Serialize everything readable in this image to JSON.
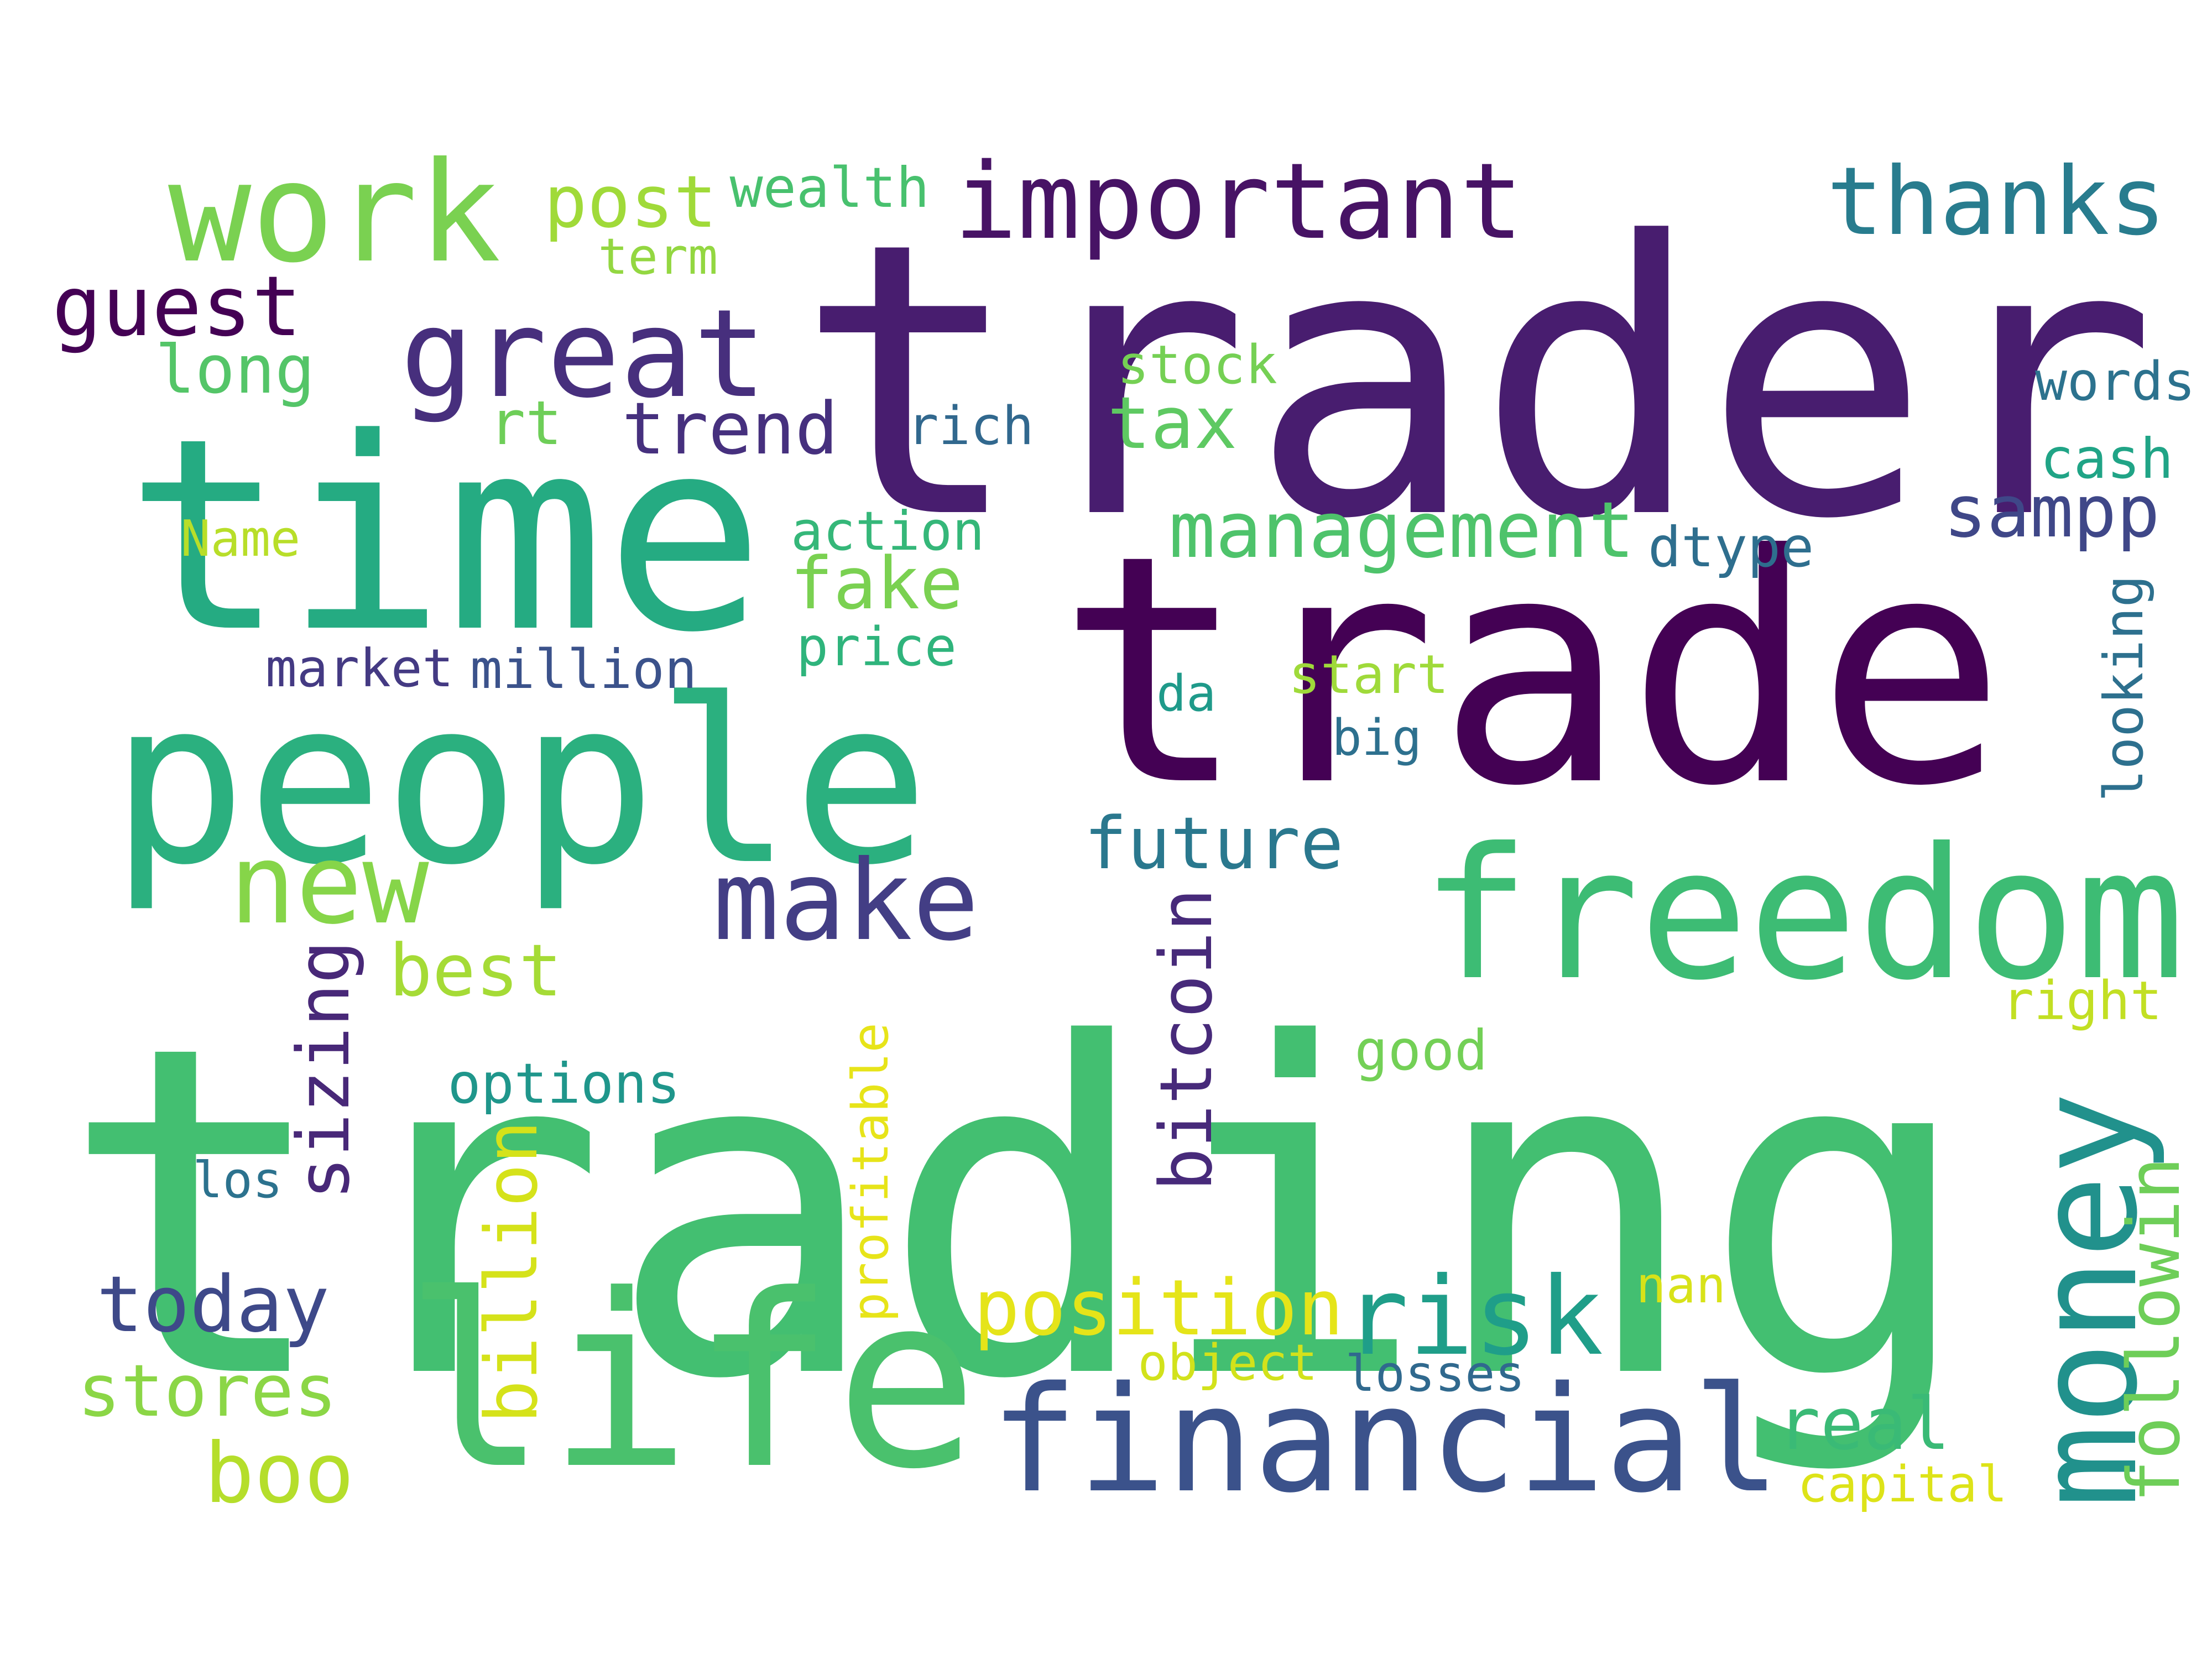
{
  "wordcloud": {
    "background": "#ffffff",
    "words": [
      {
        "text": "trading",
        "color": "#43bf71",
        "orientation": "horizontal"
      },
      {
        "text": "trader",
        "color": "#481d6f",
        "orientation": "horizontal"
      },
      {
        "text": "trade",
        "color": "#440154",
        "orientation": "horizontal"
      },
      {
        "text": "time",
        "color": "#25ab82",
        "orientation": "horizontal"
      },
      {
        "text": "people",
        "color": "#2bb07f",
        "orientation": "horizontal"
      },
      {
        "text": "freedom",
        "color": "#3dbc74",
        "orientation": "horizontal"
      },
      {
        "text": "life",
        "color": "#4ac16d",
        "orientation": "horizontal"
      },
      {
        "text": "financial",
        "color": "#3b528b",
        "orientation": "horizontal"
      },
      {
        "text": "work",
        "color": "#7ad151",
        "orientation": "horizontal"
      },
      {
        "text": "great",
        "color": "#472f7d",
        "orientation": "horizontal"
      },
      {
        "text": "important",
        "color": "#471365",
        "orientation": "horizontal"
      },
      {
        "text": "thanks",
        "color": "#287c8e",
        "orientation": "horizontal"
      },
      {
        "text": "make",
        "color": "#433e85",
        "orientation": "horizontal"
      },
      {
        "text": "new",
        "color": "#86d549",
        "orientation": "horizontal"
      },
      {
        "text": "money",
        "color": "#21918c",
        "orientation": "vertical"
      },
      {
        "text": "risk",
        "color": "#1f9e89",
        "orientation": "horizontal"
      },
      {
        "text": "management",
        "color": "#4ec36b",
        "orientation": "horizontal"
      },
      {
        "text": "position",
        "color": "#e5e419",
        "orientation": "horizontal"
      },
      {
        "text": "today",
        "color": "#3e4989",
        "orientation": "horizontal"
      },
      {
        "text": "stores",
        "color": "#8bd646",
        "orientation": "horizontal"
      },
      {
        "text": "boo",
        "color": "#b5de2b",
        "orientation": "horizontal"
      },
      {
        "text": "post",
        "color": "#a0da39",
        "orientation": "horizontal"
      },
      {
        "text": "guest",
        "color": "#440154",
        "orientation": "horizontal"
      },
      {
        "text": "long",
        "color": "#54c568",
        "orientation": "horizontal"
      },
      {
        "text": "trend",
        "color": "#46307e",
        "orientation": "horizontal"
      },
      {
        "text": "tax",
        "color": "#5ec962",
        "orientation": "horizontal"
      },
      {
        "text": "sampp",
        "color": "#3f4788",
        "orientation": "horizontal"
      },
      {
        "text": "fake",
        "color": "#7ad151",
        "orientation": "horizontal"
      },
      {
        "text": "future",
        "color": "#2a788e",
        "orientation": "horizontal"
      },
      {
        "text": "best",
        "color": "#a5db36",
        "orientation": "horizontal"
      },
      {
        "text": "sizing",
        "color": "#482878",
        "orientation": "vertical"
      },
      {
        "text": "bitcoin",
        "color": "#472a7a",
        "orientation": "vertical"
      },
      {
        "text": "billion",
        "color": "#d5e21a",
        "orientation": "vertical"
      },
      {
        "text": "followin",
        "color": "#6ece58",
        "orientation": "vertical"
      },
      {
        "text": "real",
        "color": "#3aba76",
        "orientation": "horizontal"
      },
      {
        "text": "rt",
        "color": "#6ece58",
        "orientation": "horizontal"
      },
      {
        "text": "wealth",
        "color": "#48c16e",
        "orientation": "horizontal"
      },
      {
        "text": "term",
        "color": "#93d741",
        "orientation": "horizontal"
      },
      {
        "text": "stock",
        "color": "#75d054",
        "orientation": "horizontal"
      },
      {
        "text": "rich",
        "color": "#31688e",
        "orientation": "horizontal"
      },
      {
        "text": "words",
        "color": "#2c728e",
        "orientation": "horizontal"
      },
      {
        "text": "cash",
        "color": "#20a486",
        "orientation": "horizontal"
      },
      {
        "text": "action",
        "color": "#35b779",
        "orientation": "horizontal"
      },
      {
        "text": "dtype",
        "color": "#2e6e8e",
        "orientation": "horizontal"
      },
      {
        "text": "Name",
        "color": "#b8de29",
        "orientation": "horizontal"
      },
      {
        "text": "price",
        "color": "#2fb47c",
        "orientation": "horizontal"
      },
      {
        "text": "market",
        "color": "#443a83",
        "orientation": "horizontal"
      },
      {
        "text": "million",
        "color": "#3b528b",
        "orientation": "horizontal"
      },
      {
        "text": "start",
        "color": "#9fda3a",
        "orientation": "horizontal"
      },
      {
        "text": "da",
        "color": "#1f9a8a",
        "orientation": "horizontal"
      },
      {
        "text": "big",
        "color": "#2d708e",
        "orientation": "horizontal"
      },
      {
        "text": "looking",
        "color": "#2d708e",
        "orientation": "vertical"
      },
      {
        "text": "right",
        "color": "#c2df23",
        "orientation": "horizontal"
      },
      {
        "text": "good",
        "color": "#73d056",
        "orientation": "horizontal"
      },
      {
        "text": "options",
        "color": "#1f968b",
        "orientation": "horizontal"
      },
      {
        "text": "los",
        "color": "#2c728e",
        "orientation": "horizontal"
      },
      {
        "text": "profitable",
        "color": "#e7e419",
        "orientation": "vertical"
      },
      {
        "text": "nan",
        "color": "#d8e219",
        "orientation": "horizontal"
      },
      {
        "text": "object",
        "color": "#d2e21b",
        "orientation": "horizontal"
      },
      {
        "text": "losses",
        "color": "#30698e",
        "orientation": "horizontal"
      },
      {
        "text": "capital",
        "color": "#dde318",
        "orientation": "horizontal"
      }
    ]
  }
}
